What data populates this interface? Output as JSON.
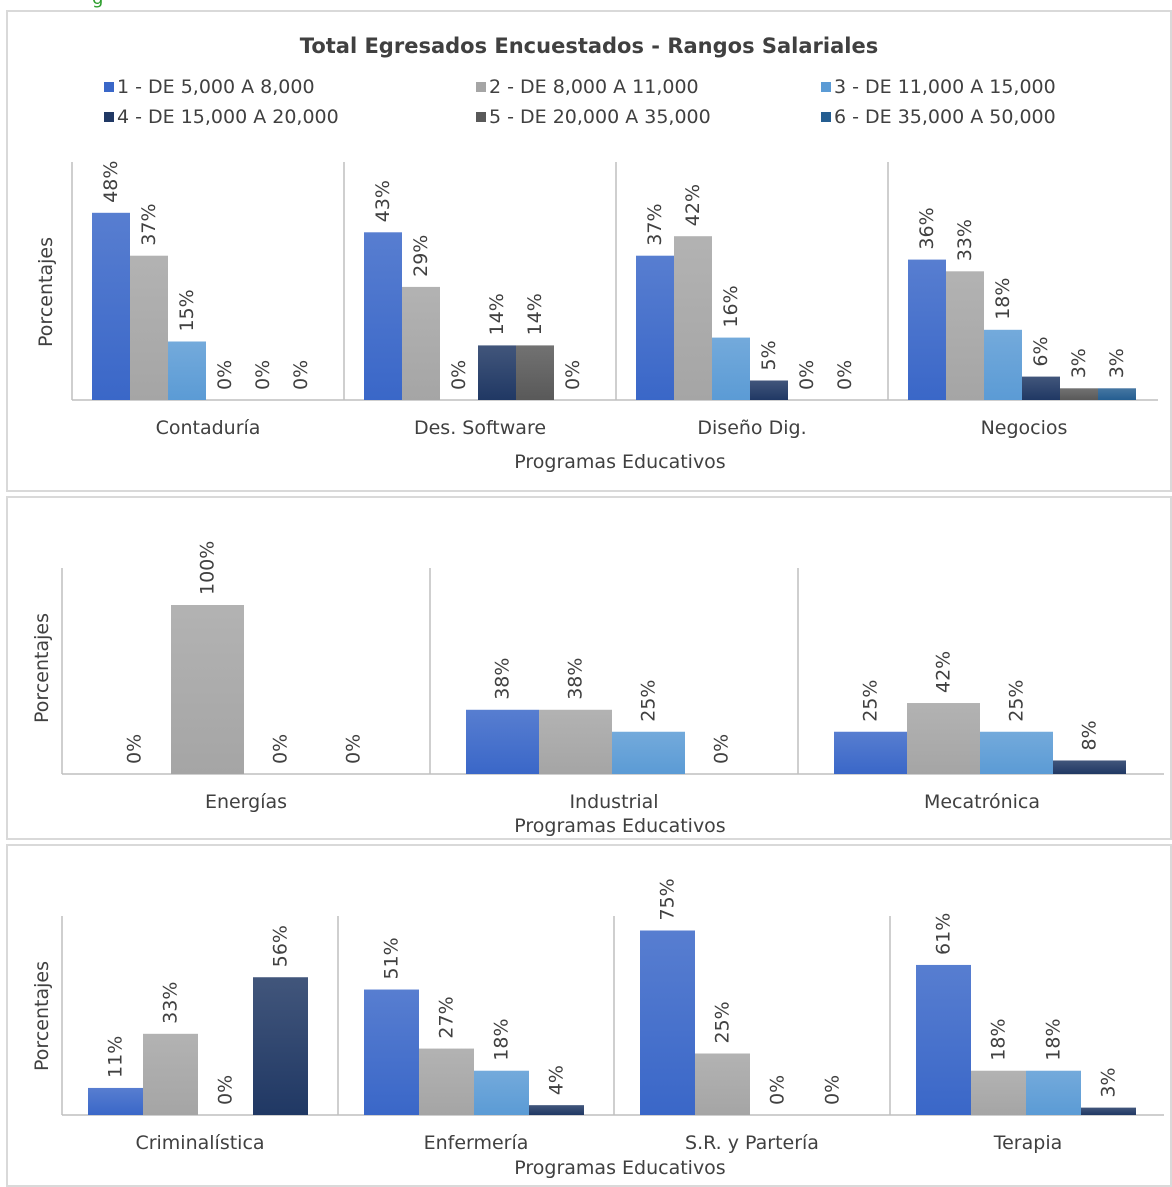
{
  "top_strip_text": "g",
  "title": "Total Egresados Encuestados - Rangos Salariales",
  "legend": [
    {
      "label": "1 - DE 5,000 A 8,000",
      "color": "#3a67c8"
    },
    {
      "label": "2 - DE 8,000 A 11,000",
      "color": "#a5a5a5"
    },
    {
      "label": "3 - DE 11,000 A 15,000",
      "color": "#5b9bd5"
    },
    {
      "label": "4 - DE 15,000 A 20,000",
      "color": "#203864"
    },
    {
      "label": "5 - DE 20,000 A 35,000",
      "color": "#595959"
    },
    {
      "label": "6 - DE 35,000 A 50,000",
      "color": "#255e91"
    }
  ],
  "chart_data": [
    {
      "type": "bar",
      "title": "Total Egresados Encuestados - Rangos Salariales",
      "xlabel": "Programas Educativos",
      "ylabel": "Porcentajes",
      "grid": false,
      "legend_position": "top",
      "categories": [
        "Contaduría",
        "Des. Software",
        "Diseño Dig.",
        "Negocios"
      ],
      "series": [
        {
          "name": "1 - DE 5,000 A 8,000",
          "values": [
            48,
            43,
            37,
            36
          ],
          "labels": [
            "48%",
            "43%",
            "37%",
            "36%"
          ]
        },
        {
          "name": "2 - DE 8,000 A 11,000",
          "values": [
            37,
            29,
            42,
            33
          ],
          "labels": [
            "37%",
            "29%",
            "42%",
            "33%"
          ]
        },
        {
          "name": "3 - DE 11,000 A 15,000",
          "values": [
            15,
            0,
            16,
            18
          ],
          "labels": [
            "15%",
            "0%",
            "16%",
            "18%"
          ]
        },
        {
          "name": "4 - DE 15,000 A 20,000",
          "values": [
            0,
            14,
            5,
            6
          ],
          "labels": [
            "0%",
            "14%",
            "5%",
            "6%"
          ]
        },
        {
          "name": "5 - DE 20,000 A 35,000",
          "values": [
            0,
            14,
            0,
            3
          ],
          "labels": [
            "0%",
            "14%",
            "0%",
            "3%"
          ]
        },
        {
          "name": "6 - DE 35,000 A 50,000",
          "values": [
            0,
            0,
            0,
            3
          ],
          "labels": [
            "0%",
            "0%",
            "0%",
            "3%"
          ]
        }
      ]
    },
    {
      "type": "bar",
      "xlabel": "Programas Educativos",
      "ylabel": "Porcentajes",
      "grid": false,
      "categories": [
        "Energías",
        "Industrial",
        "Mecatrónica"
      ],
      "series": [
        {
          "name": "1 - DE 5,000 A 8,000",
          "values": [
            0,
            38,
            25
          ],
          "labels": [
            "0%",
            "38%",
            "25%"
          ]
        },
        {
          "name": "2 - DE 8,000 A 11,000",
          "values": [
            100,
            38,
            42
          ],
          "labels": [
            "100%",
            "38%",
            "42%"
          ]
        },
        {
          "name": "3 - DE 11,000 A 15,000",
          "values": [
            0,
            25,
            25
          ],
          "labels": [
            "0%",
            "25%",
            "25%"
          ]
        },
        {
          "name": "4 - DE 15,000 A 20,000",
          "values": [
            0,
            0,
            8
          ],
          "labels": [
            "0%",
            "0%",
            "8%"
          ]
        }
      ]
    },
    {
      "type": "bar",
      "xlabel": "Programas Educativos",
      "ylabel": "Porcentajes",
      "grid": false,
      "categories": [
        "Criminalística",
        "Enfermería",
        "S.R. y Partería",
        "Terapia"
      ],
      "series": [
        {
          "name": "1 - DE 5,000 A 8,000",
          "values": [
            11,
            51,
            75,
            61
          ],
          "labels": [
            "11%",
            "51%",
            "75%",
            "61%"
          ]
        },
        {
          "name": "2 - DE 8,000 A 11,000",
          "values": [
            33,
            27,
            25,
            18
          ],
          "labels": [
            "33%",
            "27%",
            "25%",
            "18%"
          ]
        },
        {
          "name": "3 - DE 11,000 A 15,000",
          "values": [
            0,
            18,
            0,
            18
          ],
          "labels": [
            "0%",
            "18%",
            "0%",
            "18%"
          ]
        },
        {
          "name": "4 - DE 15,000 A 20,000",
          "values": [
            56,
            4,
            0,
            3
          ],
          "labels": [
            "56%",
            "4%",
            "0%",
            "3%"
          ]
        }
      ]
    }
  ]
}
